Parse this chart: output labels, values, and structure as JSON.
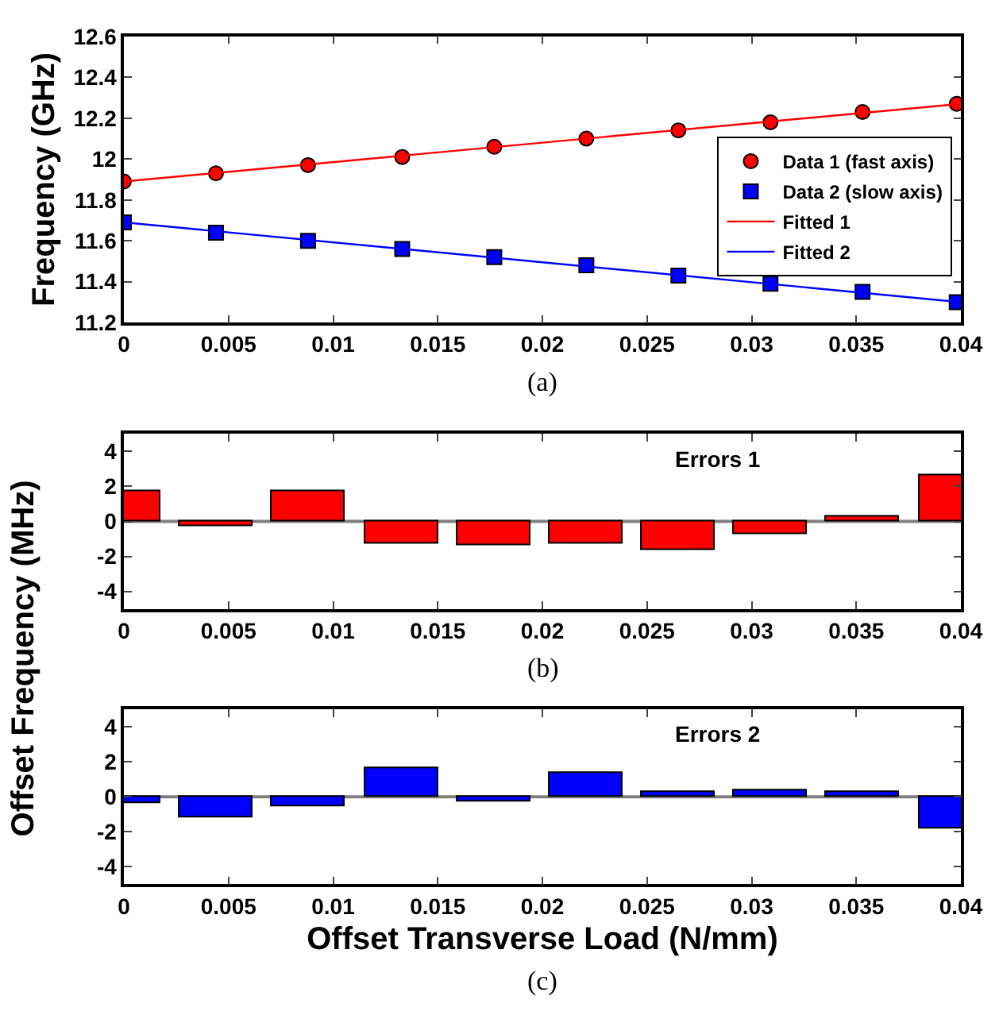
{
  "chart_data": [
    {
      "type": "scatter",
      "ylabel": "Frequency (GHz)",
      "annotations": [
        "(a)"
      ],
      "xlim": [
        0,
        0.04
      ],
      "xticks": [
        0,
        0.005,
        0.01,
        0.015,
        0.02,
        0.025,
        0.03,
        0.035,
        0.04
      ],
      "ylim": [
        11.2,
        12.6
      ],
      "yticks": [
        11.2,
        11.4,
        11.6,
        11.8,
        12,
        12.2,
        12.4,
        12.6
      ],
      "grid": false,
      "legend": "right",
      "series": [
        {
          "name": "Data 1 (fast axis)",
          "type": "scatter",
          "marker": "circle",
          "color": "#ff0000",
          "x": [
            0,
            0.0044,
            0.0088,
            0.0133,
            0.0177,
            0.0221,
            0.0265,
            0.0309,
            0.0353,
            0.0398
          ],
          "values": [
            11.89,
            11.93,
            11.97,
            12.01,
            12.06,
            12.1,
            12.14,
            12.18,
            12.23,
            12.27
          ]
        },
        {
          "name": "Data 2 (slow axis)",
          "type": "scatter",
          "marker": "square",
          "color": "#0000ff",
          "x": [
            0,
            0.0044,
            0.0088,
            0.0133,
            0.0177,
            0.0221,
            0.0265,
            0.0309,
            0.0353,
            0.0398
          ],
          "values": [
            11.69,
            11.64,
            11.6,
            11.56,
            11.52,
            11.48,
            11.43,
            11.39,
            11.35,
            11.3
          ]
        },
        {
          "name": "Fitted 1",
          "type": "line",
          "marker": "none",
          "line_style": "solid",
          "color": "#ff0000",
          "x": [
            0,
            0.04
          ],
          "values": [
            11.89,
            12.27
          ]
        },
        {
          "name": "Fitted 2",
          "type": "line",
          "marker": "none",
          "line_style": "solid",
          "color": "#0000ff",
          "x": [
            0,
            0.04
          ],
          "values": [
            11.69,
            11.3
          ]
        }
      ]
    },
    {
      "type": "bar",
      "ylabel": "Offset Frequency (MHz)",
      "annotations": [
        "Errors 1",
        "(b)"
      ],
      "xlim": [
        0,
        0.04
      ],
      "xticks": [
        0,
        0.005,
        0.01,
        0.015,
        0.02,
        0.025,
        0.03,
        0.035,
        0.04
      ],
      "ylim": [
        -5,
        5
      ],
      "yticks": [
        -4,
        -2,
        0,
        2,
        4
      ],
      "grid": false,
      "ref_lines": [
        {
          "axis": "y",
          "value": 0,
          "color": "#808080"
        }
      ],
      "x": [
        0,
        0.0044,
        0.0088,
        0.0133,
        0.0177,
        0.0221,
        0.0265,
        0.0309,
        0.0353,
        0.0398
      ],
      "series": [
        {
          "color": "#ff0000",
          "values": [
            1.7,
            -0.3,
            1.7,
            -1.3,
            -1.4,
            -1.3,
            -1.6,
            -0.7,
            0.3,
            2.6
          ]
        }
      ]
    },
    {
      "type": "bar",
      "xlabel": "Offset Transverse Load (N/mm)",
      "annotations": [
        "Errors 2",
        "(c)"
      ],
      "xlim": [
        0,
        0.04
      ],
      "xticks": [
        0,
        0.005,
        0.01,
        0.015,
        0.02,
        0.025,
        0.03,
        0.035,
        0.04
      ],
      "ylim": [
        -5,
        5
      ],
      "yticks": [
        -4,
        -2,
        0,
        2,
        4
      ],
      "grid": false,
      "ref_lines": [
        {
          "axis": "y",
          "value": 0,
          "color": "#808080"
        }
      ],
      "x": [
        0,
        0.0044,
        0.0088,
        0.0133,
        0.0177,
        0.0221,
        0.0265,
        0.0309,
        0.0353,
        0.0398
      ],
      "series": [
        {
          "color": "#0000ff",
          "values": [
            -0.4,
            -1.2,
            -0.5,
            1.6,
            -0.3,
            1.4,
            0.3,
            0.4,
            0.3,
            -1.8
          ]
        }
      ]
    }
  ]
}
